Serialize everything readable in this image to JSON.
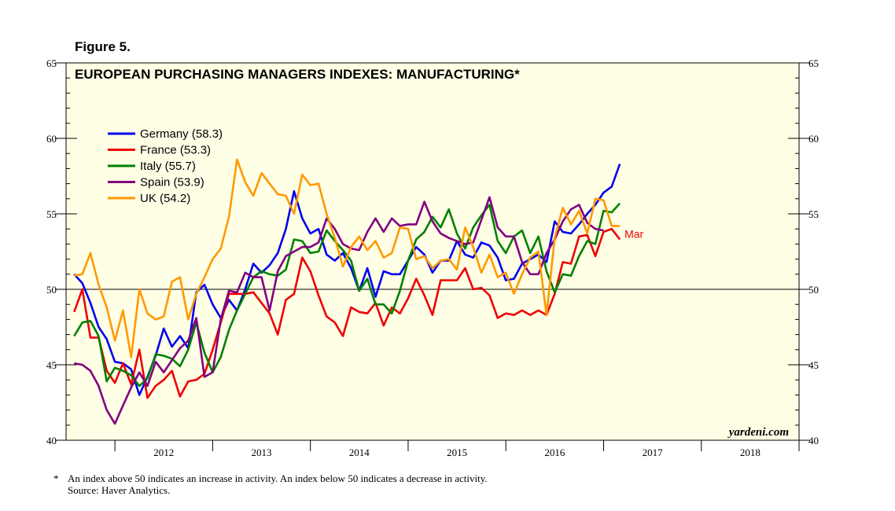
{
  "figure_label": "Figure 5.",
  "footnote": {
    "marker": "*",
    "text": "An index above 50 indicates an increase in activity. An index below 50 indicates a decrease in activity.",
    "source": "Source: Haver Analytics."
  },
  "chart_data": {
    "type": "line",
    "title": "EUROPEAN PURCHASING MANAGERS INDEXES: MANUFACTURING*",
    "watermark": "yardeni.com",
    "xlabel": "",
    "ylabel": "",
    "ylim": [
      40,
      65
    ],
    "xlim": [
      2011.5,
      2019.0
    ],
    "yticks": [
      40,
      45,
      50,
      55,
      60,
      65
    ],
    "ytick_labels": [
      "40",
      "45",
      "50",
      "55",
      "60",
      "65"
    ],
    "xtick_years": [
      "2012",
      "2013",
      "2014",
      "2015",
      "2016",
      "2017",
      "2018"
    ],
    "reference_line": 50,
    "start": 2011.583,
    "step": 0.08333,
    "end_annotation": {
      "series": "France",
      "text": "Mar"
    },
    "colors": {
      "background": "#ffffe6",
      "Germany": "#0000ee",
      "France": "#ee0000",
      "Italy": "#008000",
      "Spain": "#800080",
      "UK": "#ff9900"
    },
    "series": [
      {
        "name": "Germany",
        "legend": "Germany (58.3)",
        "color": "#0000ee",
        "values": [
          51.0,
          50.4,
          49.1,
          47.5,
          46.7,
          45.2,
          45.1,
          44.7,
          43.0,
          44.2,
          45.6,
          47.4,
          46.2,
          46.9,
          46.1,
          49.8,
          50.3,
          49.0,
          48.1,
          49.3,
          48.6,
          50.0,
          51.7,
          51.1,
          51.6,
          52.4,
          54.0,
          56.5,
          54.7,
          53.7,
          54.0,
          52.3,
          51.9,
          52.4,
          51.4,
          49.9,
          51.4,
          49.5,
          51.2,
          51.0,
          51.0,
          51.9,
          52.8,
          52.3,
          51.1,
          51.9,
          51.9,
          53.2,
          52.3,
          52.1,
          53.1,
          52.9,
          52.1,
          50.6,
          50.7,
          51.7,
          52.0,
          52.3,
          51.8,
          54.5,
          53.8,
          53.7,
          54.3,
          55.0,
          55.6,
          56.4,
          56.8,
          58.3
        ]
      },
      {
        "name": "France",
        "legend": "France (53.3)",
        "color": "#ee0000",
        "values": [
          48.5,
          50.0,
          46.8,
          46.8,
          44.6,
          43.8,
          45.1,
          43.7,
          46.0,
          42.8,
          43.6,
          44.0,
          44.6,
          42.9,
          43.9,
          44.0,
          44.4,
          46.0,
          47.8,
          49.7,
          49.7,
          49.7,
          49.8,
          49.1,
          48.4,
          47.0,
          49.3,
          49.7,
          52.1,
          51.2,
          49.6,
          48.2,
          47.8,
          46.9,
          48.8,
          48.5,
          48.4,
          49.1,
          47.6,
          48.8,
          48.4,
          49.4,
          50.7,
          49.6,
          48.3,
          50.6,
          50.6,
          50.6,
          51.4,
          50.0,
          50.1,
          49.6,
          48.1,
          48.4,
          48.3,
          48.6,
          48.3,
          48.6,
          48.3,
          49.7,
          51.8,
          51.7,
          53.5,
          53.6,
          52.2,
          53.8,
          54.0,
          53.3
        ]
      },
      {
        "name": "Italy",
        "legend": "Italy (55.7)",
        "color": "#008000",
        "values": [
          46.9,
          47.8,
          47.9,
          46.9,
          43.9,
          44.8,
          44.6,
          44.3,
          43.6,
          44.1,
          45.7,
          45.6,
          45.4,
          44.9,
          46.0,
          47.8,
          45.8,
          44.5,
          45.5,
          47.3,
          48.6,
          49.7,
          50.8,
          51.2,
          51.0,
          50.9,
          51.3,
          53.3,
          53.2,
          52.4,
          52.5,
          53.9,
          53.2,
          52.6,
          51.9,
          49.9,
          50.7,
          49.0,
          49.0,
          48.4,
          49.9,
          51.9,
          53.3,
          53.8,
          54.8,
          54.1,
          55.3,
          53.7,
          52.7,
          54.1,
          54.9,
          55.6,
          53.2,
          52.4,
          53.5,
          53.9,
          52.4,
          53.5,
          51.2,
          49.8,
          51.0,
          50.9,
          52.2,
          53.2,
          53.0,
          55.2,
          55.1,
          55.7
        ]
      },
      {
        "name": "Spain",
        "legend": "Spain (53.9)",
        "color": "#800080",
        "values": [
          45.1,
          45.0,
          44.6,
          43.6,
          42.0,
          41.1,
          42.3,
          43.5,
          44.5,
          43.6,
          45.2,
          44.5,
          45.3,
          46.1,
          46.6,
          48.1,
          44.2,
          44.5,
          48.0,
          49.9,
          49.8,
          51.1,
          50.8,
          50.8,
          48.6,
          51.2,
          52.2,
          52.5,
          52.8,
          52.8,
          53.1,
          54.7,
          54.0,
          53.0,
          52.7,
          52.6,
          53.8,
          54.7,
          53.8,
          54.7,
          54.2,
          54.3,
          54.3,
          55.8,
          54.5,
          53.7,
          53.4,
          53.2,
          53.0,
          53.1,
          54.6,
          56.1,
          54.1,
          53.5,
          53.5,
          51.8,
          51.0,
          51.0,
          52.4,
          53.3,
          54.5,
          55.3,
          55.6,
          54.4,
          54.0,
          53.9
        ]
      },
      {
        "name": "UK",
        "legend": "UK (54.2)",
        "color": "#ff9900",
        "values": [
          50.9,
          51.0,
          52.4,
          50.3,
          48.8,
          46.6,
          48.6,
          45.5,
          50.0,
          48.4,
          48.0,
          48.2,
          50.5,
          50.8,
          48.0,
          49.7,
          50.8,
          52.0,
          52.7,
          54.8,
          58.6,
          57.1,
          56.2,
          57.7,
          57.0,
          56.3,
          56.2,
          55.0,
          57.6,
          56.9,
          57.0,
          55.0,
          53.4,
          51.5,
          52.8,
          53.5,
          52.6,
          53.2,
          52.1,
          52.4,
          54.1,
          54.0,
          52.0,
          52.2,
          51.4,
          51.9,
          52.0,
          51.3,
          54.1,
          52.8,
          51.1,
          52.3,
          50.8,
          51.1,
          49.7,
          51.0,
          52.1,
          52.5,
          48.3,
          53.4,
          55.4,
          54.3,
          55.2,
          53.7,
          56.0,
          55.9,
          54.2,
          54.2
        ]
      }
    ]
  }
}
